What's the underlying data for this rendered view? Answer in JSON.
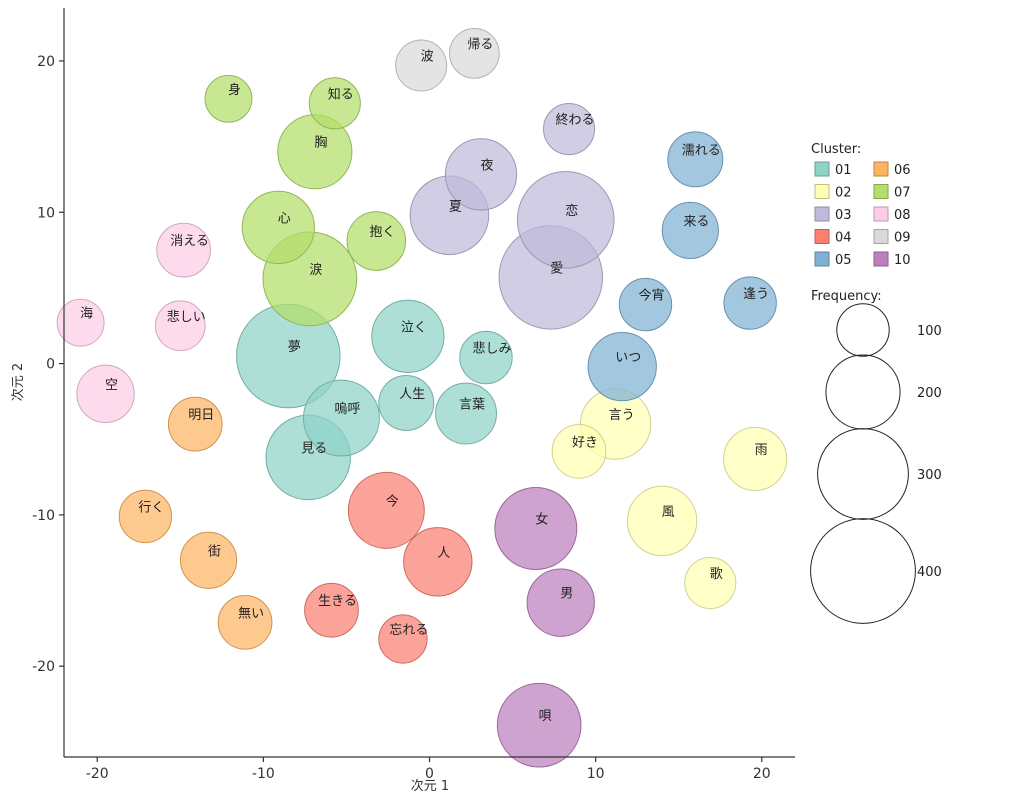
{
  "chart_data": {
    "type": "scatter",
    "subtype": "bubble",
    "title": "",
    "xlabel": "次元 1",
    "ylabel": "次元 2",
    "xlim": [
      -22,
      22
    ],
    "ylim": [
      -26,
      23.5
    ],
    "xticks": [
      -20,
      -10,
      0,
      10,
      20
    ],
    "yticks": [
      -20,
      -10,
      0,
      10,
      20
    ],
    "grid": false,
    "clusters": [
      {
        "id": "01",
        "color": "#8dd3c7"
      },
      {
        "id": "02",
        "color": "#ffffb3"
      },
      {
        "id": "03",
        "color": "#bebada"
      },
      {
        "id": "04",
        "color": "#fb8072"
      },
      {
        "id": "05",
        "color": "#80b1d3"
      },
      {
        "id": "06",
        "color": "#fdb462"
      },
      {
        "id": "07",
        "color": "#b3de69"
      },
      {
        "id": "08",
        "color": "#fccde5"
      },
      {
        "id": "09",
        "color": "#d9d9d9"
      },
      {
        "id": "10",
        "color": "#bc80bd"
      }
    ],
    "legend": {
      "cluster_title": "Cluster:",
      "frequency_title": "Frequency:",
      "frequency_values": [
        100,
        200,
        300,
        400
      ],
      "placement": "right"
    },
    "points": [
      {
        "word": "夢",
        "x": -8.5,
        "y": 0.5,
        "freq": 390,
        "cluster": "01"
      },
      {
        "word": "見る",
        "x": -7.3,
        "y": -6.2,
        "freq": 260,
        "cluster": "01"
      },
      {
        "word": "嗚呼",
        "x": -5.3,
        "y": -3.6,
        "freq": 210,
        "cluster": "01"
      },
      {
        "word": "泣く",
        "x": -1.3,
        "y": 1.8,
        "freq": 190,
        "cluster": "01"
      },
      {
        "word": "人生",
        "x": -1.4,
        "y": -2.6,
        "freq": 110,
        "cluster": "01"
      },
      {
        "word": "言葉",
        "x": 2.2,
        "y": -3.3,
        "freq": 135,
        "cluster": "01"
      },
      {
        "word": "悲しみ",
        "x": 3.4,
        "y": 0.4,
        "freq": 100,
        "cluster": "01"
      },
      {
        "word": "言う",
        "x": 11.2,
        "y": -4.0,
        "freq": 180,
        "cluster": "02"
      },
      {
        "word": "好き",
        "x": 9.0,
        "y": -5.8,
        "freq": 105,
        "cluster": "02"
      },
      {
        "word": "雨",
        "x": 19.6,
        "y": -6.3,
        "freq": 145,
        "cluster": "02"
      },
      {
        "word": "風",
        "x": 14.0,
        "y": -10.4,
        "freq": 175,
        "cluster": "02"
      },
      {
        "word": "歌",
        "x": 16.9,
        "y": -14.5,
        "freq": 95,
        "cluster": "02"
      },
      {
        "word": "恋",
        "x": 8.2,
        "y": 9.5,
        "freq": 340,
        "cluster": "03"
      },
      {
        "word": "愛",
        "x": 7.3,
        "y": 5.7,
        "freq": 390,
        "cluster": "03"
      },
      {
        "word": "夏",
        "x": 1.2,
        "y": 9.8,
        "freq": 225,
        "cluster": "03"
      },
      {
        "word": "夜",
        "x": 3.1,
        "y": 12.5,
        "freq": 185,
        "cluster": "03"
      },
      {
        "word": "終わる",
        "x": 8.4,
        "y": 15.5,
        "freq": 95,
        "cluster": "03"
      },
      {
        "word": "今",
        "x": -2.6,
        "y": -9.7,
        "freq": 210,
        "cluster": "04"
      },
      {
        "word": "人",
        "x": 0.5,
        "y": -13.1,
        "freq": 170,
        "cluster": "04"
      },
      {
        "word": "生きる",
        "x": -5.9,
        "y": -16.3,
        "freq": 105,
        "cluster": "04"
      },
      {
        "word": "忘れる",
        "x": -1.6,
        "y": -18.2,
        "freq": 85,
        "cluster": "04"
      },
      {
        "word": "濡れる",
        "x": 16.0,
        "y": 13.5,
        "freq": 110,
        "cluster": "05"
      },
      {
        "word": "来る",
        "x": 15.7,
        "y": 8.8,
        "freq": 115,
        "cluster": "05"
      },
      {
        "word": "今宵",
        "x": 13.0,
        "y": 3.9,
        "freq": 100,
        "cluster": "05"
      },
      {
        "word": "逢う",
        "x": 19.3,
        "y": 4.0,
        "freq": 100,
        "cluster": "05"
      },
      {
        "word": "いつ",
        "x": 11.6,
        "y": -0.2,
        "freq": 170,
        "cluster": "05"
      },
      {
        "word": "明日",
        "x": -14.1,
        "y": -4.0,
        "freq": 105,
        "cluster": "06"
      },
      {
        "word": "行く",
        "x": -17.1,
        "y": -10.1,
        "freq": 100,
        "cluster": "06"
      },
      {
        "word": "街",
        "x": -13.3,
        "y": -13.0,
        "freq": 115,
        "cluster": "06"
      },
      {
        "word": "無い",
        "x": -11.1,
        "y": -17.1,
        "freq": 105,
        "cluster": "06"
      },
      {
        "word": "身",
        "x": -12.1,
        "y": 17.5,
        "freq": 80,
        "cluster": "07"
      },
      {
        "word": "知る",
        "x": -5.7,
        "y": 17.2,
        "freq": 95,
        "cluster": "07"
      },
      {
        "word": "胸",
        "x": -6.9,
        "y": 14.0,
        "freq": 200,
        "cluster": "07"
      },
      {
        "word": "心",
        "x": -9.1,
        "y": 9.0,
        "freq": 190,
        "cluster": "07"
      },
      {
        "word": "抱く",
        "x": -3.2,
        "y": 8.1,
        "freq": 125,
        "cluster": "07"
      },
      {
        "word": "涙",
        "x": -7.2,
        "y": 5.6,
        "freq": 320,
        "cluster": "07"
      },
      {
        "word": "消える",
        "x": -14.8,
        "y": 7.5,
        "freq": 105,
        "cluster": "08"
      },
      {
        "word": "海",
        "x": -21.0,
        "y": 2.7,
        "freq": 80,
        "cluster": "08"
      },
      {
        "word": "悲しい",
        "x": -15.0,
        "y": 2.5,
        "freq": 90,
        "cluster": "08"
      },
      {
        "word": "空",
        "x": -19.5,
        "y": -2.0,
        "freq": 120,
        "cluster": "08"
      },
      {
        "word": "波",
        "x": -0.5,
        "y": 19.7,
        "freq": 95,
        "cluster": "09"
      },
      {
        "word": "帰る",
        "x": 2.7,
        "y": 20.5,
        "freq": 90,
        "cluster": "09"
      },
      {
        "word": "女",
        "x": 6.4,
        "y": -10.9,
        "freq": 245,
        "cluster": "10"
      },
      {
        "word": "男",
        "x": 7.9,
        "y": -15.8,
        "freq": 165,
        "cluster": "10"
      },
      {
        "word": "唄",
        "x": 6.6,
        "y": -23.9,
        "freq": 255,
        "cluster": "10"
      }
    ]
  }
}
